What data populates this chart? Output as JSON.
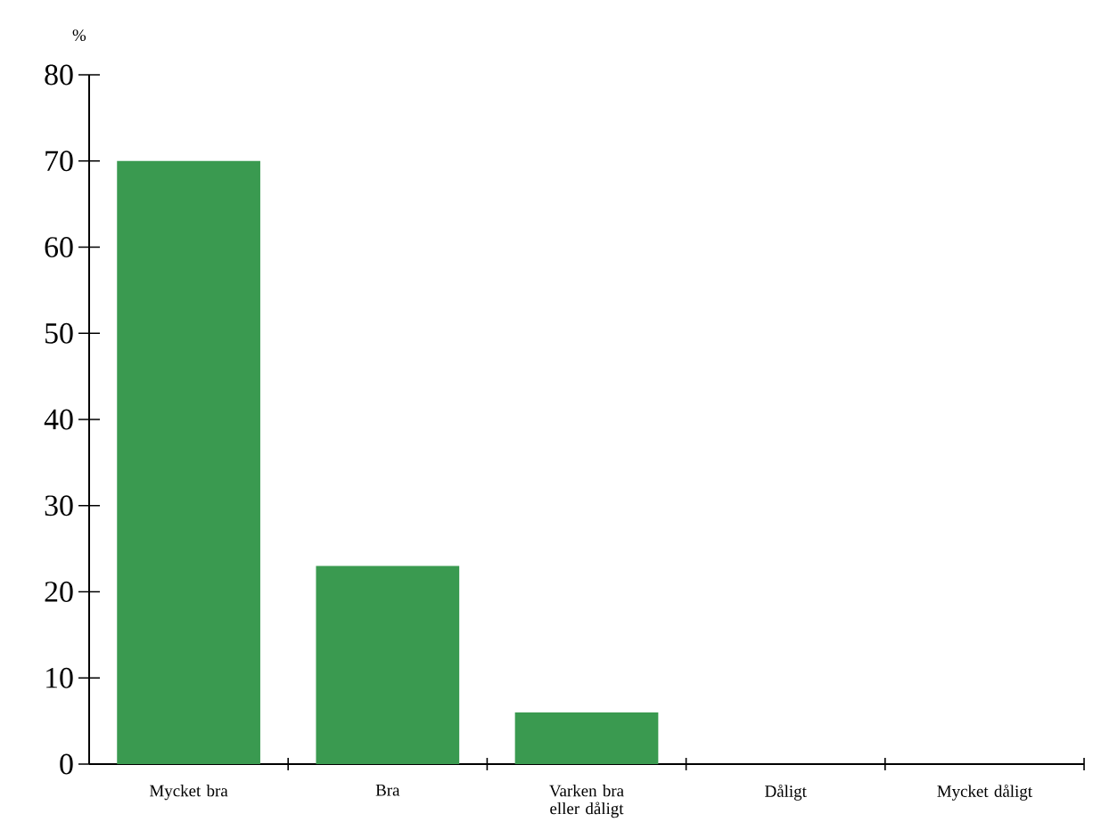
{
  "chart_data": {
    "type": "bar",
    "ylabel": "%",
    "categories": [
      "Mycket bra",
      "Bra",
      "Varken bra eller dåligt",
      "Dåligt",
      "Mycket dåligt"
    ],
    "values": [
      70,
      23,
      6,
      0,
      0
    ],
    "color": "#3a9a50",
    "ylim": [
      0,
      80
    ],
    "yticks": [
      0,
      10,
      20,
      30,
      40,
      50,
      60,
      70,
      80
    ],
    "grid": false
  }
}
